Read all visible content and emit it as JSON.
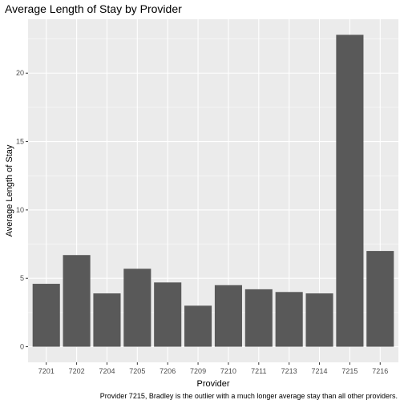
{
  "chart_data": {
    "type": "bar",
    "title": "Average Length of Stay by Provider",
    "xlabel": "Provider",
    "ylabel": "Average Length of Stay",
    "caption": "Provider 7215, Bradley is the outlier with a much longer average stay than all other providers.",
    "categories": [
      "7201",
      "7202",
      "7204",
      "7205",
      "7206",
      "7209",
      "7210",
      "7211",
      "7213",
      "7214",
      "7215",
      "7216"
    ],
    "values": [
      4.6,
      6.7,
      3.9,
      5.7,
      4.7,
      3.0,
      4.5,
      4.2,
      4.0,
      3.9,
      22.8,
      7.0
    ],
    "y_ticks": [
      0,
      5,
      10,
      15,
      20
    ],
    "ylim": [
      -1.14,
      23.94
    ],
    "grid": true,
    "legend": "none",
    "colors": {
      "bar": "#595959",
      "panel": "#ebebeb",
      "grid_major": "#ffffff"
    }
  }
}
